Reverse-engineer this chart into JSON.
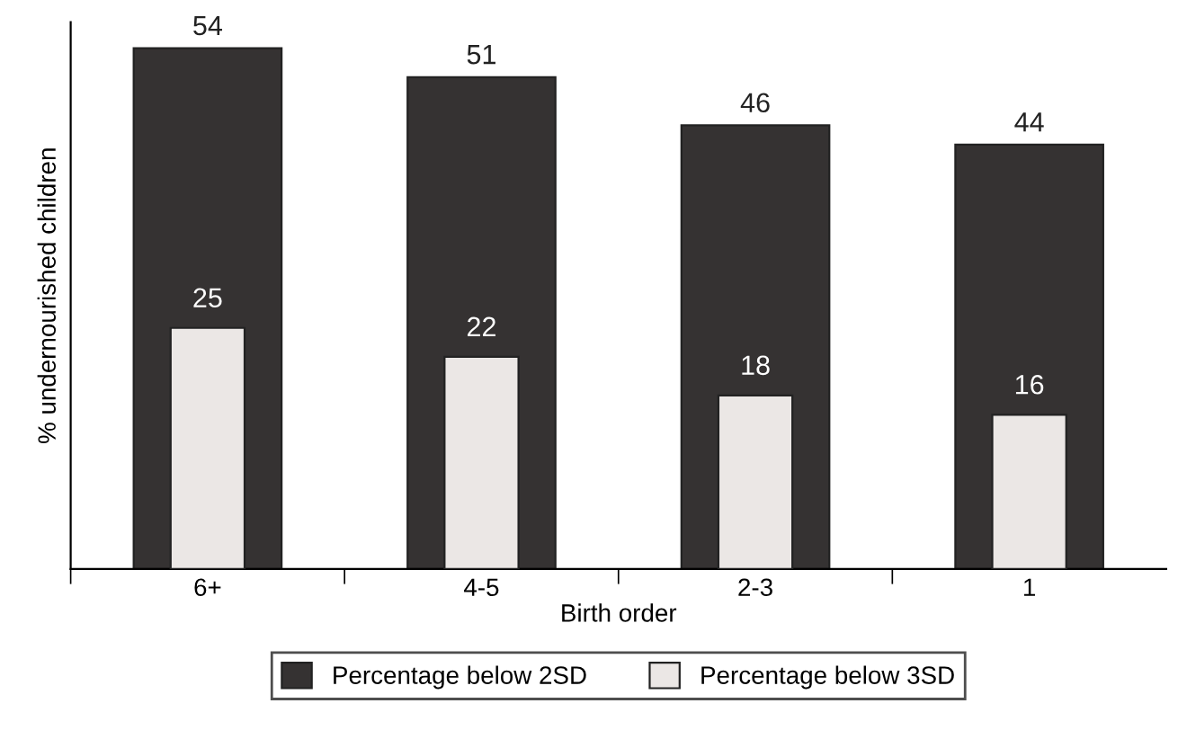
{
  "chart_data": {
    "type": "bar",
    "xlabel": "Birth order",
    "ylabel": "% undernourished children",
    "categories": [
      "6+",
      "4-5",
      "2-3",
      "1"
    ],
    "series": [
      {
        "name": "Percentage below 2SD",
        "color": "#353232",
        "values": [
          54,
          51,
          46,
          44
        ]
      },
      {
        "name": "Percentage below 3SD",
        "color": "#ebe7e5",
        "values": [
          25,
          22,
          18,
          16
        ]
      }
    ],
    "data_labels": true,
    "legend": "bottom",
    "tick_labels": "x"
  }
}
